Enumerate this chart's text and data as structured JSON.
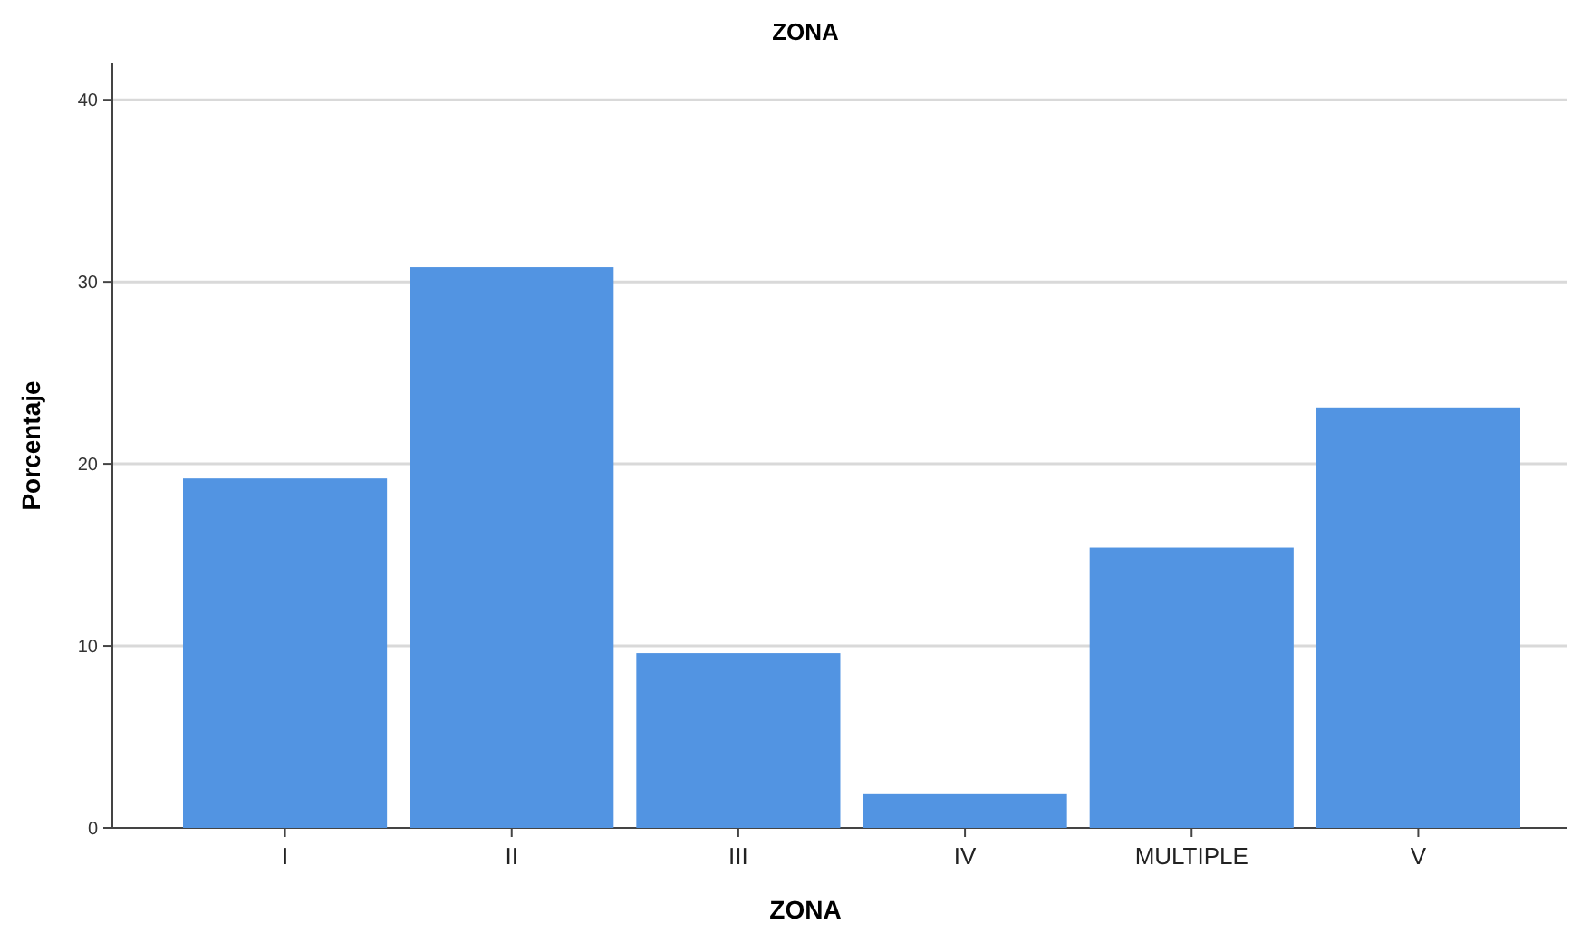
{
  "chart_data": {
    "type": "bar",
    "title": "ZONA",
    "xlabel": "ZONA",
    "ylabel": "Porcentaje",
    "categories": [
      "I",
      "II",
      "III",
      "IV",
      "MULTIPLE",
      "V"
    ],
    "values": [
      19.2,
      30.8,
      9.6,
      1.9,
      15.4,
      23.1
    ],
    "color": "#5294e2",
    "ylim": [
      0,
      42
    ],
    "yticks": [
      0,
      10,
      20,
      30,
      40
    ],
    "grid": "y"
  }
}
